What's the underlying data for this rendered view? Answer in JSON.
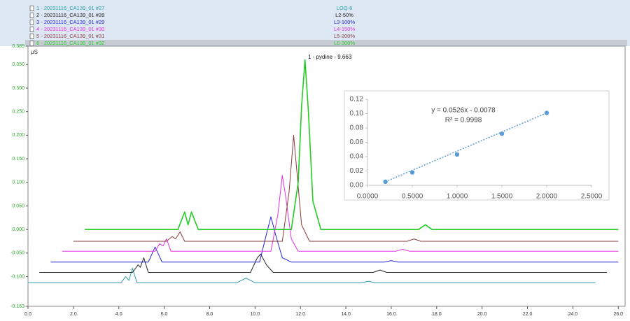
{
  "chart_data": [
    {
      "type": "line",
      "y_label": "μS",
      "annotation": "1 - pydine - 9.663",
      "xlim": [
        0,
        26.3
      ],
      "ylim": [
        -0.163,
        0.389
      ],
      "xticks": [
        {
          "value": 0,
          "label": "0.0"
        },
        {
          "value": 2,
          "label": "2.0"
        },
        {
          "value": 4,
          "label": "4.0"
        },
        {
          "value": 6,
          "label": "6.0"
        },
        {
          "value": 8,
          "label": "8.0"
        },
        {
          "value": 10,
          "label": "10.0"
        },
        {
          "value": 12,
          "label": "12.0"
        },
        {
          "value": 14,
          "label": "14.0"
        },
        {
          "value": 16,
          "label": "16.0"
        },
        {
          "value": 18,
          "label": "18.0"
        },
        {
          "value": 20,
          "label": "20.0"
        },
        {
          "value": 22,
          "label": "22.0"
        },
        {
          "value": 24,
          "label": "24.0"
        },
        {
          "value": 26,
          "label": "26.0"
        }
      ],
      "yticks": [
        {
          "value": -0.163,
          "label": "-0.163"
        },
        {
          "value": -0.1,
          "label": "-0.100"
        },
        {
          "value": -0.05,
          "label": "-0.050"
        },
        {
          "value": 0,
          "label": "0.000"
        },
        {
          "value": 0.05,
          "label": "0.050"
        },
        {
          "value": 0.1,
          "label": "0.100"
        },
        {
          "value": 0.15,
          "label": "0.150"
        },
        {
          "value": 0.2,
          "label": "0.200"
        },
        {
          "value": 0.25,
          "label": "0.250"
        },
        {
          "value": 0.3,
          "label": "0.300"
        },
        {
          "value": 0.35,
          "label": "0.350"
        },
        {
          "value": 0.389,
          "label": "0.389"
        }
      ],
      "series": [
        {
          "name": "1 - 20231116_CA139_01 #27",
          "label": "LOQ-6",
          "color": "#2a9aa6",
          "x": [
            0,
            4.1,
            4.3,
            4.45,
            4.6,
            4.8,
            9.2,
            9.6,
            10.0,
            14.7,
            15.0,
            15.3,
            25
          ],
          "values": [
            -0.113,
            -0.113,
            -0.1,
            -0.108,
            -0.082,
            -0.113,
            -0.113,
            -0.103,
            -0.113,
            -0.113,
            -0.11,
            -0.113,
            -0.113
          ]
        },
        {
          "name": "2 - 20231116_CA139_01 #28",
          "label": "L2-50%",
          "color": "#222222",
          "x": [
            0.5,
            4.6,
            4.85,
            4.95,
            5.1,
            5.3,
            9.8,
            10.1,
            10.25,
            10.5,
            10.8,
            15.2,
            15.5,
            15.8,
            25.5
          ],
          "values": [
            -0.091,
            -0.091,
            -0.075,
            -0.08,
            -0.06,
            -0.091,
            -0.091,
            -0.06,
            -0.052,
            -0.075,
            -0.091,
            -0.091,
            -0.086,
            -0.091,
            -0.091
          ]
        },
        {
          "name": "3 - 20231116_CA139_01 #29",
          "label": "L3-100%",
          "color": "#2323d6",
          "x": [
            1.0,
            5.3,
            5.6,
            5.9,
            10.2,
            10.5,
            10.7,
            10.9,
            11.2,
            11.6,
            15.7,
            16.0,
            16.3,
            26
          ],
          "values": [
            -0.069,
            -0.069,
            -0.037,
            -0.069,
            -0.069,
            -0.01,
            0.027,
            -0.01,
            -0.06,
            -0.069,
            -0.069,
            -0.066,
            -0.069,
            -0.069
          ]
        },
        {
          "name": "4 - 20231116_CA139_01 #30",
          "label": "L4-150%",
          "color": "#e030e0",
          "x": [
            1.5,
            5.6,
            5.8,
            5.95,
            6.1,
            6.3,
            10.7,
            11.0,
            11.2,
            11.35,
            11.6,
            11.9,
            16.2,
            16.5,
            16.8,
            26
          ],
          "values": [
            -0.046,
            -0.046,
            -0.03,
            -0.035,
            -0.02,
            -0.046,
            -0.046,
            0.03,
            0.115,
            0.07,
            -0.02,
            -0.046,
            -0.046,
            -0.042,
            -0.046,
            -0.046
          ]
        },
        {
          "name": "5 - 20231116_CA139_01 #31",
          "label": "L5-200%",
          "color": "#8b3a3a",
          "x": [
            2.0,
            6.1,
            6.35,
            6.5,
            6.7,
            6.9,
            11.2,
            11.5,
            11.7,
            11.85,
            12.05,
            12.4,
            16.7,
            17.0,
            17.3,
            26
          ],
          "values": [
            -0.025,
            -0.025,
            -0.015,
            -0.02,
            -0.005,
            -0.025,
            -0.025,
            0.08,
            0.2,
            0.12,
            0.01,
            -0.025,
            -0.025,
            -0.02,
            -0.025,
            -0.025
          ]
        },
        {
          "name": "6 - 20231116_CA139_01 #32",
          "label": "L6-300%",
          "color": "#22cc22",
          "x": [
            2.5,
            6.6,
            6.9,
            7.05,
            7.2,
            7.5,
            11.6,
            11.9,
            12.05,
            12.2,
            12.35,
            12.55,
            12.9,
            17.2,
            17.5,
            17.8,
            26
          ],
          "values": [
            0,
            0,
            0.037,
            0.01,
            0.037,
            0,
            0,
            0.1,
            0.26,
            0.36,
            0.25,
            0.06,
            0,
            0,
            0.01,
            0,
            0
          ]
        }
      ]
    },
    {
      "type": "scatter",
      "equation": "y = 0.0526x - 0.0078",
      "r_squared": "R² = 0.9998",
      "color": "#5b9bd5",
      "x": [
        0.2,
        0.5,
        1.0,
        1.5,
        2.0
      ],
      "values": [
        0.005,
        0.018,
        0.043,
        0.072,
        0.101
      ],
      "xlim": [
        0,
        2.5
      ],
      "ylim": [
        0,
        0.12
      ],
      "xticks": [
        {
          "value": 0,
          "label": "0.0000"
        },
        {
          "value": 0.5,
          "label": "0.5000"
        },
        {
          "value": 1,
          "label": "1.0000"
        },
        {
          "value": 1.5,
          "label": "1.5000"
        },
        {
          "value": 2,
          "label": "2.0000"
        },
        {
          "value": 2.5,
          "label": "2.5000"
        }
      ],
      "yticks": [
        {
          "value": 0,
          "label": "0.00"
        },
        {
          "value": 0.02,
          "label": "0.02"
        },
        {
          "value": 0.04,
          "label": "0.04"
        },
        {
          "value": 0.06,
          "label": "0.06"
        },
        {
          "value": 0.08,
          "label": "0.08"
        },
        {
          "value": 0.1,
          "label": "0.10"
        },
        {
          "value": 0.12,
          "label": "0.12"
        }
      ]
    }
  ]
}
